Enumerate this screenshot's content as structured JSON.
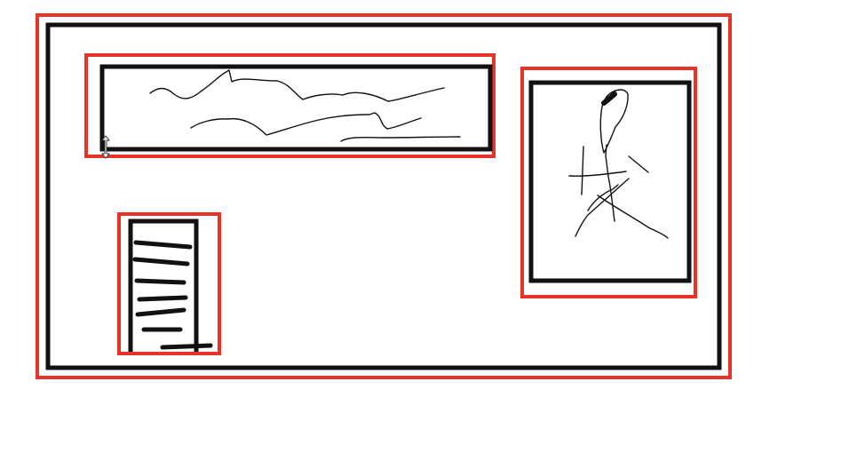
{
  "colors": {
    "background": "#ffffff",
    "highlight_outline": "#e8332b",
    "ink": "#111111"
  },
  "cursor": {
    "icon": "vertical-resize-cursor-icon"
  }
}
